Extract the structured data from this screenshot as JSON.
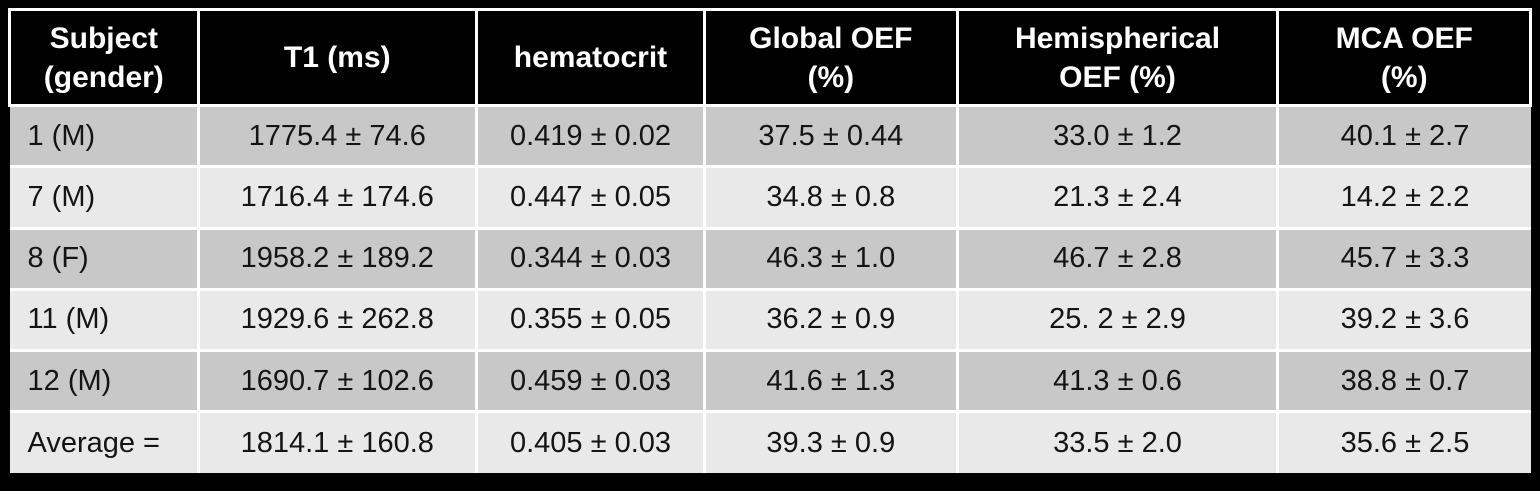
{
  "colors": {
    "background": "#000000",
    "header_bg": "#000000",
    "header_text": "#ffffff",
    "row_band_dark": "#c8c8c8",
    "row_band_light": "#e9e9e9",
    "cell_text": "#141414",
    "grid_line": "#ffffff"
  },
  "table": {
    "columns": [
      {
        "key": "subject-gender",
        "label": "Subject\n(gender)"
      },
      {
        "key": "t1-ms",
        "label": "T1 (ms)"
      },
      {
        "key": "hematocrit",
        "label": "hematocrit"
      },
      {
        "key": "global-oef",
        "label": "Global OEF\n(%)"
      },
      {
        "key": "hemispherical-oef",
        "label": "Hemispherical\nOEF (%)"
      },
      {
        "key": "mca-oef",
        "label": "MCA OEF\n(%)"
      }
    ],
    "rows": [
      [
        "1 (M)",
        "1775.4 ± 74.6",
        "0.419 ± 0.02",
        "37.5 ± 0.44",
        "33.0 ± 1.2",
        "40.1 ± 2.7"
      ],
      [
        "7 (M)",
        "1716.4 ± 174.6",
        "0.447 ± 0.05",
        "34.8 ± 0.8",
        "21.3 ± 2.4",
        "14.2 ± 2.2"
      ],
      [
        "8 (F)",
        "1958.2 ± 189.2",
        "0.344 ± 0.03",
        "46.3 ± 1.0",
        "46.7 ± 2.8",
        "45.7 ± 3.3"
      ],
      [
        "11 (M)",
        "1929.6 ± 262.8",
        "0.355 ± 0.05",
        "36.2 ± 0.9",
        "25. 2 ± 2.9",
        "39.2 ± 3.6"
      ],
      [
        "12 (M)",
        "1690.7 ± 102.6",
        "0.459 ± 0.03",
        "41.6 ± 1.3",
        "41.3 ± 0.6",
        "38.8 ± 0.7"
      ],
      [
        "Average =",
        "1814.1 ± 160.8",
        "0.405 ± 0.03",
        "39.3 ± 0.9",
        "33.5 ± 2.0",
        "35.6 ± 2.5"
      ]
    ]
  }
}
